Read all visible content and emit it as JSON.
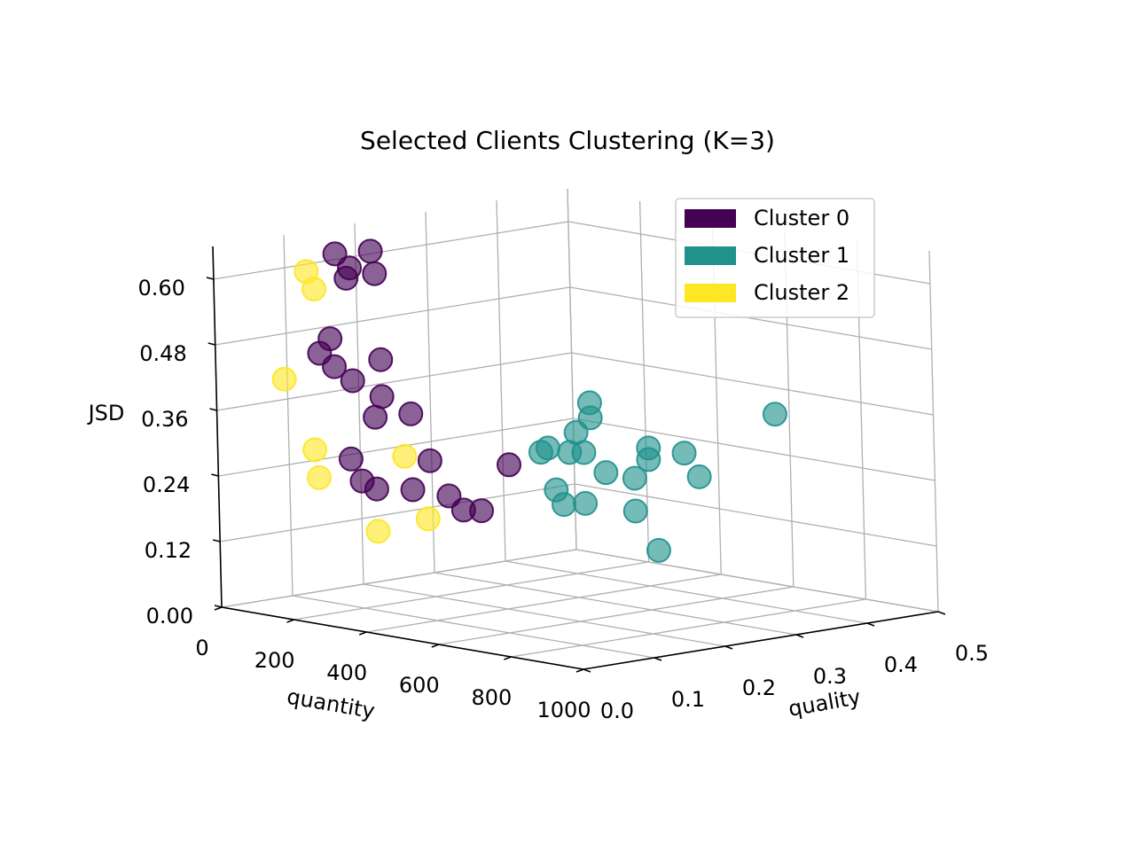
{
  "chart_data": {
    "type": "scatter",
    "title": "Selected Clients Clustering (K=3)",
    "xlabel": "quantity",
    "ylabel": "quality",
    "zlabel": "JSD",
    "xlim": [
      0,
      1000
    ],
    "ylim": [
      0.0,
      0.5
    ],
    "zlim": [
      0.0,
      0.66
    ],
    "x_ticks": [
      "0",
      "200",
      "400",
      "600",
      "800",
      "1000"
    ],
    "y_ticks": [
      "0.0",
      "0.1",
      "0.2",
      "0.3",
      "0.4",
      "0.5"
    ],
    "z_ticks": [
      "0.00",
      "0.12",
      "0.24",
      "0.36",
      "0.48",
      "0.60"
    ],
    "grid": true,
    "legend_position": "top-right",
    "series": [
      {
        "name": "Cluster 0",
        "color": "#440154",
        "points": [
          {
            "x": 180,
            "y": 0.08,
            "z": 0.65
          },
          {
            "x": 180,
            "y": 0.1,
            "z": 0.62
          },
          {
            "x": 170,
            "y": 0.1,
            "z": 0.6
          },
          {
            "x": 160,
            "y": 0.14,
            "z": 0.64
          },
          {
            "x": 170,
            "y": 0.14,
            "z": 0.6
          },
          {
            "x": 240,
            "y": 0.04,
            "z": 0.51
          },
          {
            "x": 210,
            "y": 0.04,
            "z": 0.48
          },
          {
            "x": 250,
            "y": 0.04,
            "z": 0.46
          },
          {
            "x": 300,
            "y": 0.04,
            "z": 0.44
          },
          {
            "x": 380,
            "y": 0.04,
            "z": 0.42
          },
          {
            "x": 360,
            "y": 0.04,
            "z": 0.38
          },
          {
            "x": 300,
            "y": 0.08,
            "z": 0.47
          },
          {
            "x": 380,
            "y": 0.08,
            "z": 0.38
          },
          {
            "x": 310,
            "y": 0.03,
            "z": 0.3
          },
          {
            "x": 280,
            "y": 0.06,
            "z": 0.25
          },
          {
            "x": 320,
            "y": 0.06,
            "z": 0.24
          },
          {
            "x": 420,
            "y": 0.06,
            "z": 0.25
          },
          {
            "x": 520,
            "y": 0.06,
            "z": 0.25
          },
          {
            "x": 430,
            "y": 0.08,
            "z": 0.3
          },
          {
            "x": 520,
            "y": 0.08,
            "z": 0.22
          },
          {
            "x": 550,
            "y": 0.09,
            "z": 0.22
          },
          {
            "x": 570,
            "y": 0.12,
            "z": 0.3
          }
        ]
      },
      {
        "name": "Cluster 1",
        "color": "#21918c",
        "points": [
          {
            "x": 600,
            "y": 0.15,
            "z": 0.32
          },
          {
            "x": 620,
            "y": 0.15,
            "z": 0.33
          },
          {
            "x": 620,
            "y": 0.19,
            "z": 0.35
          },
          {
            "x": 640,
            "y": 0.17,
            "z": 0.32
          },
          {
            "x": 660,
            "y": 0.18,
            "z": 0.32
          },
          {
            "x": 620,
            "y": 0.21,
            "z": 0.4
          },
          {
            "x": 700,
            "y": 0.17,
            "z": 0.39
          },
          {
            "x": 760,
            "y": 0.2,
            "z": 0.28
          },
          {
            "x": 720,
            "y": 0.18,
            "z": 0.29
          },
          {
            "x": 760,
            "y": 0.22,
            "z": 0.31
          },
          {
            "x": 800,
            "y": 0.2,
            "z": 0.34
          },
          {
            "x": 700,
            "y": 0.13,
            "z": 0.24
          },
          {
            "x": 660,
            "y": 0.14,
            "z": 0.26
          },
          {
            "x": 720,
            "y": 0.15,
            "z": 0.24
          },
          {
            "x": 760,
            "y": 0.2,
            "z": 0.22
          },
          {
            "x": 880,
            "y": 0.23,
            "z": 0.29
          },
          {
            "x": 800,
            "y": 0.25,
            "z": 0.32
          },
          {
            "x": 980,
            "y": 0.12,
            "z": 0.19
          },
          {
            "x": 600,
            "y": 0.48,
            "z": 0.32
          }
        ]
      },
      {
        "name": "Cluster 2",
        "color": "#fde725",
        "points": [
          {
            "x": 60,
            "y": 0.1,
            "z": 0.6
          },
          {
            "x": 80,
            "y": 0.1,
            "z": 0.57
          },
          {
            "x": 150,
            "y": 0.02,
            "z": 0.43
          },
          {
            "x": 230,
            "y": 0.02,
            "z": 0.31
          },
          {
            "x": 240,
            "y": 0.02,
            "z": 0.26
          },
          {
            "x": 360,
            "y": 0.08,
            "z": 0.3
          },
          {
            "x": 400,
            "y": 0.02,
            "z": 0.18
          },
          {
            "x": 500,
            "y": 0.04,
            "z": 0.21
          }
        ]
      }
    ]
  }
}
